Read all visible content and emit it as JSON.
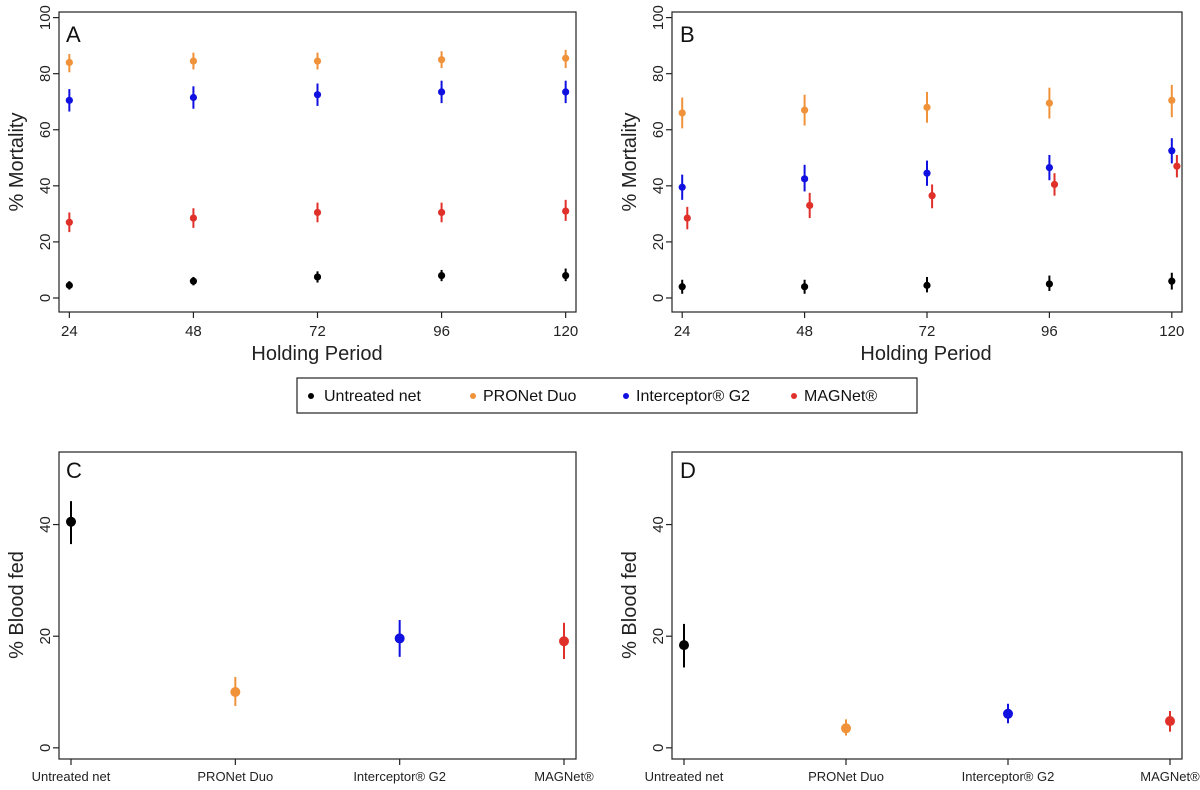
{
  "colors": {
    "untreated": "#000000",
    "pronet": "#f0923a",
    "interceptor": "#1010e0",
    "magnet": "#e0302a",
    "axis": "#222222"
  },
  "legend": {
    "entries": [
      {
        "label": "Untreated net",
        "color": "#000000"
      },
      {
        "label": "PRONet Duo",
        "color": "#f0923a"
      },
      {
        "label": "Interceptor® G2",
        "color": "#1010e0"
      },
      {
        "label": "MAGNet®",
        "color": "#e0302a"
      }
    ]
  },
  "chart_data": [
    {
      "panel": "A",
      "type": "scatter",
      "xlabel": "Holding Period",
      "ylabel": "% Mortality",
      "x_ticks": [
        24,
        48,
        72,
        96,
        120
      ],
      "y_ticks": [
        0,
        20,
        40,
        60,
        80,
        100
      ],
      "xlim": [
        22,
        122
      ],
      "ylim": [
        -5,
        102
      ],
      "series": [
        {
          "name": "Untreated net",
          "color": "#000000",
          "x": [
            24,
            48,
            72,
            96,
            120
          ],
          "y": [
            4.5,
            6,
            7.5,
            8,
            8
          ],
          "lo": [
            3,
            4.5,
            5.5,
            6,
            6
          ],
          "hi": [
            6,
            7.5,
            9.5,
            10,
            10.5
          ]
        },
        {
          "name": "PRONet Duo",
          "color": "#f0923a",
          "x": [
            24,
            48,
            72,
            96,
            120
          ],
          "y": [
            84,
            84.5,
            84.5,
            85,
            85.5
          ],
          "lo": [
            80.5,
            81.5,
            81.5,
            82,
            82
          ],
          "hi": [
            87,
            87.5,
            87.5,
            88,
            88.5
          ]
        },
        {
          "name": "Interceptor® G2",
          "color": "#1010e0",
          "x": [
            24,
            48,
            72,
            96,
            120
          ],
          "y": [
            70.5,
            71.5,
            72.5,
            73.5,
            73.5
          ],
          "lo": [
            66.5,
            67.5,
            68.5,
            69.5,
            69.5
          ],
          "hi": [
            74.5,
            75.5,
            76.5,
            77.5,
            77.5
          ]
        },
        {
          "name": "MAGNet®",
          "color": "#e0302a",
          "x": [
            24,
            48,
            72,
            96,
            120
          ],
          "y": [
            27,
            28.5,
            30.5,
            30.5,
            31
          ],
          "lo": [
            23.5,
            25,
            27,
            27,
            27.5
          ],
          "hi": [
            30.5,
            32,
            34,
            34,
            35
          ]
        }
      ]
    },
    {
      "panel": "B",
      "type": "scatter",
      "xlabel": "Holding Period",
      "ylabel": "% Mortality",
      "x_ticks": [
        24,
        48,
        72,
        96,
        120
      ],
      "y_ticks": [
        0,
        20,
        40,
        60,
        80,
        100
      ],
      "xlim": [
        22,
        122
      ],
      "ylim": [
        -5,
        102
      ],
      "series": [
        {
          "name": "Untreated net",
          "color": "#000000",
          "x": [
            24,
            48,
            72,
            96,
            120
          ],
          "y": [
            4,
            4,
            4.5,
            5,
            6
          ],
          "lo": [
            1.5,
            1.5,
            2,
            2.5,
            3
          ],
          "hi": [
            6.5,
            6.5,
            7.5,
            8,
            9
          ]
        },
        {
          "name": "PRONet Duo",
          "color": "#f0923a",
          "x": [
            24,
            48,
            72,
            96,
            120
          ],
          "y": [
            66,
            67,
            68,
            69.5,
            70.5
          ],
          "lo": [
            60.5,
            61.5,
            62.5,
            64,
            64.5
          ],
          "hi": [
            71.5,
            72.5,
            73.5,
            75,
            76
          ]
        },
        {
          "name": "Interceptor® G2",
          "color": "#1010e0",
          "x": [
            24,
            48,
            72,
            96,
            120
          ],
          "y": [
            39.5,
            42.5,
            44.5,
            46.5,
            52.5
          ],
          "lo": [
            35,
            38,
            40,
            42,
            48
          ],
          "hi": [
            44,
            47.5,
            49,
            51,
            57
          ]
        },
        {
          "name": "MAGNet®",
          "color": "#e0302a",
          "x": [
            25,
            49,
            73,
            97,
            121
          ],
          "y": [
            28.5,
            33,
            36.5,
            40.5,
            47
          ],
          "lo": [
            24.5,
            28.5,
            32,
            36.5,
            43
          ],
          "hi": [
            32.5,
            37.5,
            40.5,
            44.5,
            51
          ]
        }
      ]
    },
    {
      "panel": "C",
      "type": "scatter",
      "xlabel": "",
      "ylabel": "% Blood fed",
      "categories": [
        "Untreated net",
        "PRONet Duo",
        "Interceptor® G2",
        "MAGNet®"
      ],
      "y_ticks": [
        0,
        20,
        40
      ],
      "ylim": [
        -2,
        53
      ],
      "points": [
        {
          "name": "Untreated net",
          "color": "#000000",
          "y": 40.5,
          "lo": 36.5,
          "hi": 44.2
        },
        {
          "name": "PRONet Duo",
          "color": "#f0923a",
          "y": 10,
          "lo": 7.5,
          "hi": 12.7
        },
        {
          "name": "Interceptor® G2",
          "color": "#1010e0",
          "y": 19.6,
          "lo": 16.3,
          "hi": 22.9
        },
        {
          "name": "MAGNet®",
          "color": "#e0302a",
          "y": 19.1,
          "lo": 15.9,
          "hi": 22.4
        }
      ]
    },
    {
      "panel": "D",
      "type": "scatter",
      "xlabel": "",
      "ylabel": "% Blood fed",
      "categories": [
        "Untreated net",
        "PRONet Duo",
        "Interceptor® G2",
        "MAGNet®"
      ],
      "y_ticks": [
        0,
        20,
        40
      ],
      "ylim": [
        -2,
        53
      ],
      "points": [
        {
          "name": "Untreated net",
          "color": "#000000",
          "y": 18.4,
          "lo": 14.4,
          "hi": 22.2
        },
        {
          "name": "PRONet Duo",
          "color": "#f0923a",
          "y": 3.5,
          "lo": 2.2,
          "hi": 5.1
        },
        {
          "name": "Interceptor® G2",
          "color": "#1010e0",
          "y": 6.1,
          "lo": 4.4,
          "hi": 7.9
        },
        {
          "name": "MAGNet®",
          "color": "#e0302a",
          "y": 4.8,
          "lo": 2.9,
          "hi": 6.6
        }
      ]
    }
  ]
}
